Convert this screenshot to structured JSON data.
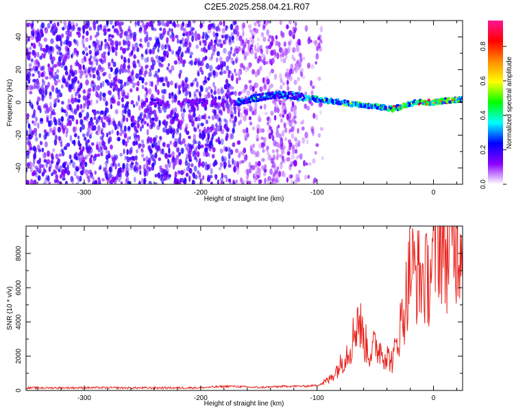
{
  "figure_title": "C2E5.2025.258.04.21.R07",
  "chart_data": [
    {
      "type": "heatmap",
      "title": "C2E5.2025.258.04.21.R07",
      "xlabel": "Height of straight line (km)",
      "ylabel": "Frequency (Hz)",
      "xlim": [
        -350,
        25
      ],
      "ylim": [
        -50,
        50
      ],
      "xticks": [
        -300,
        -200,
        -100,
        0
      ],
      "yticks": [
        -40,
        -20,
        0,
        20,
        40
      ],
      "colorbar": {
        "label": "Normalized spectral amplitude",
        "range": [
          0.0,
          0.95
        ],
        "ticks": [
          0.0,
          0.2,
          0.4,
          0.6,
          0.8
        ],
        "tick_labels": [
          "0.0",
          "0.2",
          "0.4",
          "0.6",
          "0.8"
        ],
        "colormap": [
          "#ffffff",
          "#8b00ff",
          "#0000ff",
          "#00ffff",
          "#00ff00",
          "#ffff00",
          "#ff8c00",
          "#ff0000",
          "#ff1493"
        ]
      },
      "signal_track": {
        "x": [
          -170,
          -150,
          -130,
          -110,
          -90,
          -70,
          -55,
          -45,
          -35,
          -25,
          -15,
          0,
          10,
          25
        ],
        "freq": [
          0,
          3,
          5,
          3,
          1,
          -1,
          -2,
          -3,
          -4,
          -2,
          0,
          0,
          1,
          2
        ]
      }
    },
    {
      "type": "line",
      "xlabel": "Height of straight line (km)",
      "ylabel": "SNR (10 * v/v)",
      "xlim": [
        -350,
        25
      ],
      "ylim": [
        0,
        9600
      ],
      "xticks": [
        -300,
        -200,
        -100,
        0
      ],
      "yticks": [
        0,
        2000,
        4000,
        6000,
        8000
      ],
      "series": [
        {
          "name": "SNR",
          "color": "#e8201a",
          "x": [
            -350,
            -300,
            -250,
            -200,
            -175,
            -150,
            -125,
            -110,
            -100,
            -90,
            -80,
            -70,
            -65,
            -60,
            -55,
            -50,
            -45,
            -40,
            -35,
            -30,
            -25,
            -20,
            -15,
            -10,
            -5,
            0,
            5,
            10,
            15,
            20,
            25
          ],
          "y": [
            150,
            160,
            150,
            160,
            250,
            170,
            250,
            250,
            300,
            600,
            1500,
            2800,
            4400,
            3000,
            2200,
            2600,
            2400,
            2000,
            1700,
            3300,
            4800,
            7200,
            6800,
            6600,
            6400,
            7800,
            9300,
            8000,
            8400,
            8800,
            9100
          ]
        }
      ]
    }
  ]
}
